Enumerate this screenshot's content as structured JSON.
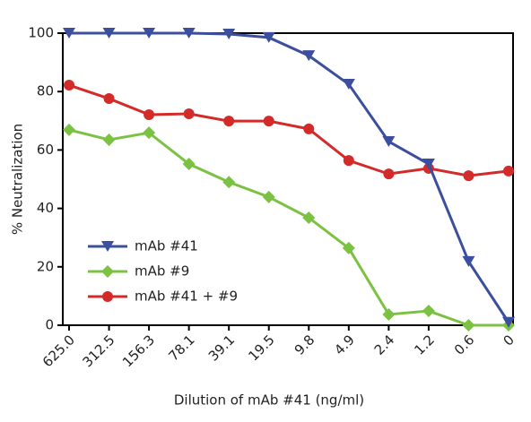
{
  "chart_data": {
    "type": "line",
    "x_label": "Dilution of mAb #41 (ng/ml)",
    "y_label": "% Neutralization",
    "categories": [
      "625.0",
      "312.5",
      "156.3",
      "78.1",
      "39.1",
      "19.5",
      "9.8",
      "4.9",
      "2.4",
      "1.2",
      "0.6",
      "0"
    ],
    "series": [
      {
        "name": "mAb #41",
        "color": "#3c4f9e",
        "marker": "triangle-down",
        "values": [
          100,
          100,
          100,
          100,
          99.7,
          98.5,
          92.3,
          82.5,
          62.9,
          55.2,
          21.8,
          1
        ]
      },
      {
        "name": "mAb #9",
        "color": "#7cc242",
        "marker": "diamond",
        "values": [
          66.9,
          63.5,
          65.9,
          55.2,
          49,
          43.9,
          36.8,
          26.4,
          3.7,
          4.9,
          0,
          0
        ]
      },
      {
        "name": "mAb #41 + #9",
        "color": "#d32a2a",
        "marker": "circle",
        "values": [
          82.2,
          77.6,
          72.1,
          72.4,
          69.9,
          69.9,
          67.2,
          56.4,
          51.8,
          53.7,
          51.2,
          52.8
        ]
      }
    ],
    "ylim": [
      0,
      100
    ],
    "yticks": [
      0,
      20,
      40,
      60,
      80,
      100
    ],
    "grid": false,
    "legend": "lower left"
  }
}
